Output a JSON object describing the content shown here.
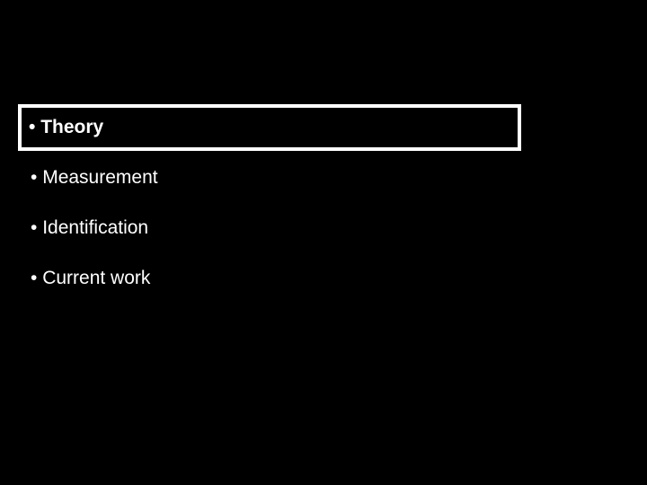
{
  "slide": {
    "background_color": "#000000",
    "text_color": "#ffffff",
    "border_color": "#ffffff",
    "border_width": 4,
    "font_family": "Arial",
    "items": [
      {
        "label": "Theory",
        "highlighted": true,
        "font_size": 21,
        "font_weight": "bold"
      },
      {
        "label": "Measurement",
        "highlighted": false,
        "font_size": 21,
        "font_weight": "normal"
      },
      {
        "label": "Identification",
        "highlighted": false,
        "font_size": 21,
        "font_weight": "normal"
      },
      {
        "label": "Current work",
        "highlighted": false,
        "font_size": 21,
        "font_weight": "normal"
      }
    ],
    "bullet_char": "•"
  }
}
